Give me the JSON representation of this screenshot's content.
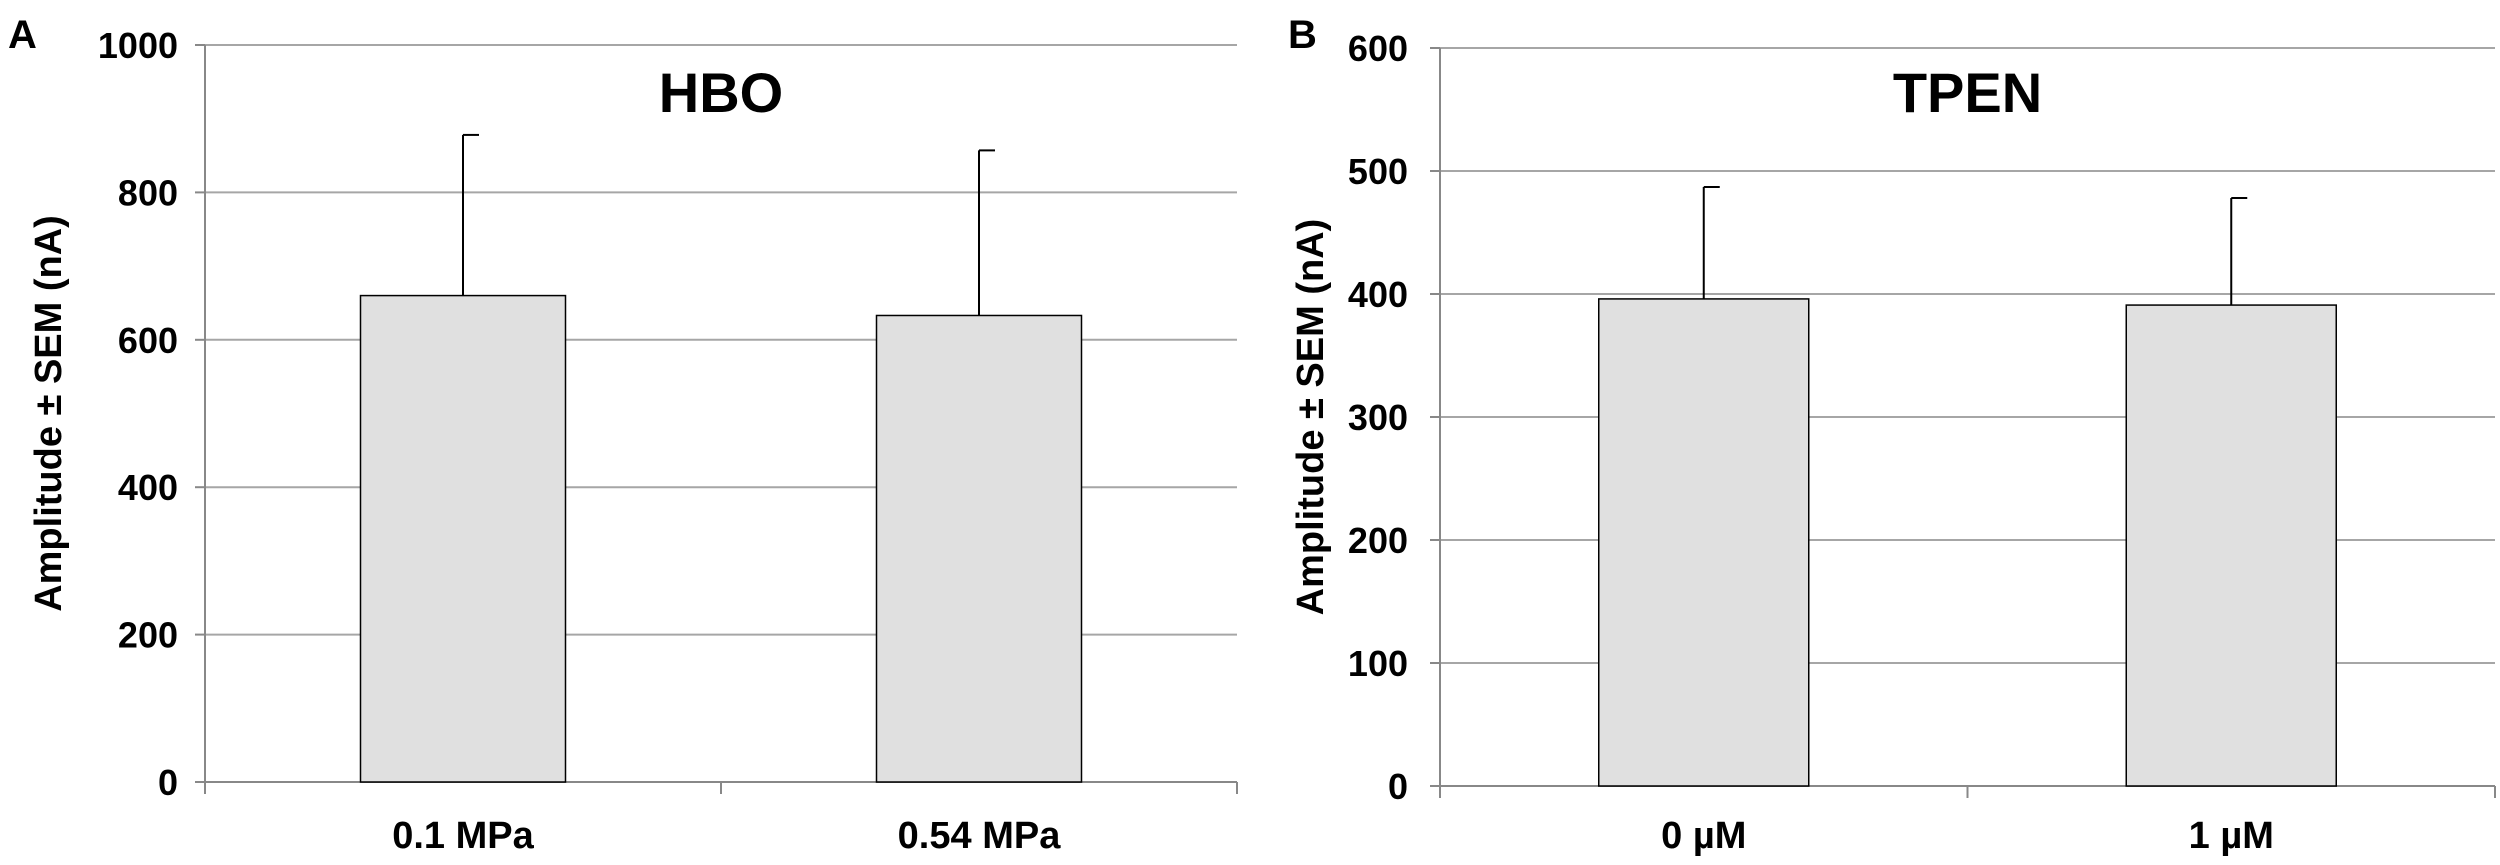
{
  "chart_data": [
    {
      "panel_label": "A",
      "type": "bar",
      "title": "HBO",
      "xlabel": "",
      "ylabel": "Amplitude ± SEM (nA)",
      "categories": [
        "0.1 MPa",
        "0.54 MPa"
      ],
      "values": [
        660,
        633
      ],
      "errors": [
        218,
        224
      ],
      "ylim": [
        0,
        1000
      ],
      "yticks": [
        0,
        200,
        400,
        600,
        800,
        1000
      ],
      "grid": true,
      "bar_color": "#e0e0e0"
    },
    {
      "panel_label": "B",
      "type": "bar",
      "title": "TPEN",
      "xlabel": "",
      "ylabel": "Amplitude ± SEM (nA)",
      "categories": [
        "0 µM",
        "1 µM"
      ],
      "values": [
        396,
        391
      ],
      "errors": [
        91,
        87
      ],
      "ylim": [
        0,
        600
      ],
      "yticks": [
        0,
        100,
        200,
        300,
        400,
        500,
        600
      ],
      "grid": true,
      "bar_color": "#e0e0e0"
    }
  ]
}
